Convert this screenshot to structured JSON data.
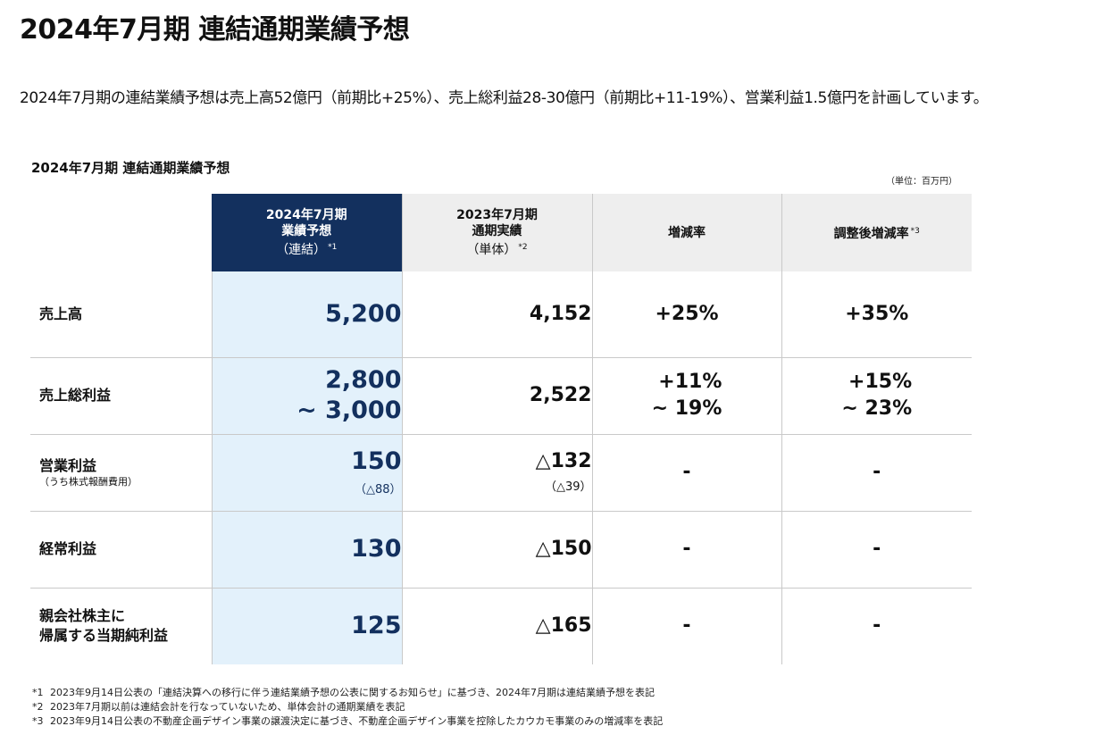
{
  "title": "2024年7月期 連結通期業績予想",
  "summary": "2024年7月期の連結業績予想は売上高52億円（前期比+25%）、売上総利益28-30億円（前期比+11-19%）、営業利益1.5億円を計画しています。",
  "table": {
    "title": "2024年7月期 連結通期業績予想",
    "unit": "（単位：百万円）",
    "headers": {
      "forecast": {
        "line1": "2024年7月期",
        "line2": "業績予想",
        "line3": "（連結）",
        "note": "*1"
      },
      "actual": {
        "line1": "2023年7月期",
        "line2": "通期実績",
        "line3": "（単体）",
        "note": "*2"
      },
      "change": {
        "label": "増減率"
      },
      "adjusted": {
        "label": "調整後増減率",
        "note": "*3"
      }
    },
    "rows": [
      {
        "label": "売上高",
        "sub": "",
        "forecast": "5,200",
        "forecast2": "",
        "forecast_paren": "",
        "actual": "4,152",
        "actual_paren": "",
        "change": "+25%",
        "change2": "",
        "adjusted": "+35%",
        "adjusted2": ""
      },
      {
        "label": "売上総利益",
        "sub": "",
        "forecast": "2,800",
        "forecast2": "~ 3,000",
        "forecast_paren": "",
        "actual": "2,522",
        "actual_paren": "",
        "change": "+11%",
        "change2": "~ 19%",
        "adjusted": "+15%",
        "adjusted2": "~ 23%"
      },
      {
        "label": "営業利益",
        "sub": "（うち株式報酬費用）",
        "forecast": "150",
        "forecast2": "",
        "forecast_paren": "（△88）",
        "actual": "△132",
        "actual_paren": "（△39）",
        "change": "-",
        "change2": "",
        "adjusted": "-",
        "adjusted2": ""
      },
      {
        "label": "経常利益",
        "sub": "",
        "forecast": "130",
        "forecast2": "",
        "forecast_paren": "",
        "actual": "△150",
        "actual_paren": "",
        "change": "-",
        "change2": "",
        "adjusted": "-",
        "adjusted2": ""
      },
      {
        "label": "親会社株主に",
        "label2": "帰属する当期純利益",
        "sub": "",
        "forecast": "125",
        "forecast2": "",
        "forecast_paren": "",
        "actual": "△165",
        "actual_paren": "",
        "change": "-",
        "change2": "",
        "adjusted": "-",
        "adjusted2": ""
      }
    ]
  },
  "footnotes": [
    {
      "mark": "*1",
      "text": "2023年9月14日公表の「連結決算への移行に伴う連結業績予想の公表に関するお知らせ」に基づき、2024年7月期は連結業績予想を表記"
    },
    {
      "mark": "*2",
      "text": "2023年7月期以前は連結会計を行なっていないため、単体会計の通期業績を表記"
    },
    {
      "mark": "*3",
      "text": "2023年9月14日公表の不動産企画デザイン事業の譲渡決定に基づき、不動産企画デザイン事業を控除したカウカモ事業のみの増減率を表記"
    }
  ]
}
